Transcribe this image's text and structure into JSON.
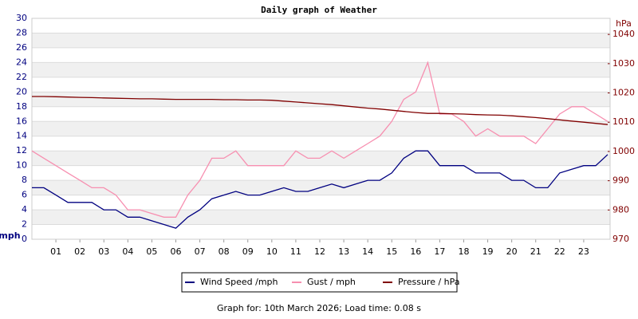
{
  "chart_data": {
    "type": "line",
    "title": "Daily graph of Weather",
    "y_label": "mph",
    "y2_label": "hPa",
    "caption": "Graph for: 10th March 2026; Load time: 0.08 s",
    "x": [
      0,
      0.5,
      1,
      1.5,
      2,
      2.5,
      3,
      3.5,
      4,
      4.5,
      5,
      5.5,
      6,
      6.5,
      7,
      7.5,
      8,
      8.5,
      9,
      9.5,
      10,
      10.5,
      11,
      11.5,
      12,
      12.5,
      13,
      13.5,
      14,
      14.5,
      15,
      15.5,
      16,
      16.5,
      17,
      17.5,
      18,
      18.5,
      19,
      19.5,
      20,
      20.5,
      21,
      21.5,
      22,
      22.5,
      23,
      23.5,
      24
    ],
    "xlim": [
      0,
      24.1
    ],
    "xticks": [
      {
        "value": 1,
        "label": "01"
      },
      {
        "value": 2,
        "label": "02"
      },
      {
        "value": 3,
        "label": "03"
      },
      {
        "value": 4,
        "label": "04"
      },
      {
        "value": 5,
        "label": "05"
      },
      {
        "value": 6,
        "label": "06"
      },
      {
        "value": 7,
        "label": "07"
      },
      {
        "value": 8,
        "label": "08"
      },
      {
        "value": 9,
        "label": "09"
      },
      {
        "value": 10,
        "label": "10"
      },
      {
        "value": 11,
        "label": "11"
      },
      {
        "value": 12,
        "label": "12"
      },
      {
        "value": 13,
        "label": "13"
      },
      {
        "value": 14,
        "label": "14"
      },
      {
        "value": 15,
        "label": "15"
      },
      {
        "value": 16,
        "label": "16"
      },
      {
        "value": 17,
        "label": "17"
      },
      {
        "value": 18,
        "label": "18"
      },
      {
        "value": 19,
        "label": "19"
      },
      {
        "value": 20,
        "label": "20"
      },
      {
        "value": 21,
        "label": "21"
      },
      {
        "value": 22,
        "label": "22"
      },
      {
        "value": 23,
        "label": "23"
      }
    ],
    "ylim": [
      0,
      30
    ],
    "yticks": [
      0,
      2,
      4,
      6,
      8,
      10,
      12,
      14,
      16,
      18,
      20,
      22,
      24,
      26,
      28,
      30
    ],
    "y2lim": [
      970,
      1045.5
    ],
    "y2ticks": [
      970,
      980,
      990,
      1000,
      1010,
      1020,
      1030,
      1040
    ],
    "grid": true,
    "legend": "bottom",
    "series": [
      {
        "name": "Wind Speed /mph",
        "color": "#000080",
        "values": [
          7,
          7,
          6,
          5,
          5,
          5,
          4,
          4,
          3,
          3,
          2.5,
          2,
          1.5,
          3,
          4,
          5.5,
          6,
          6.5,
          6,
          6,
          6.5,
          7,
          6.5,
          6.5,
          7,
          7.5,
          7,
          7.5,
          8,
          8,
          9,
          11,
          12,
          12,
          10,
          10,
          10,
          9,
          9,
          9,
          8,
          8,
          7,
          7,
          9,
          9.5,
          10,
          10,
          11.5
        ]
      },
      {
        "name": "Gust / mph",
        "color": "#f78fb0",
        "values": [
          12,
          11,
          10,
          9,
          8,
          7,
          7,
          6,
          4,
          4,
          3.5,
          3,
          3,
          6,
          8,
          11,
          11,
          12,
          10,
          10,
          10,
          10,
          12,
          11,
          11,
          12,
          11,
          12,
          13,
          14,
          16,
          19,
          20,
          24,
          17,
          17,
          16,
          14,
          15,
          14,
          14,
          14,
          13,
          15,
          17,
          18,
          18,
          17,
          16
        ]
      },
      {
        "name": "Pressure / hPa",
        "color": "#800000",
        "axis": "y2",
        "values": [
          1018.8,
          1018.8,
          1018.7,
          1018.6,
          1018.5,
          1018.4,
          1018.3,
          1018.2,
          1018.1,
          1018,
          1018,
          1017.9,
          1017.8,
          1017.8,
          1017.8,
          1017.8,
          1017.7,
          1017.7,
          1017.6,
          1017.6,
          1017.5,
          1017.2,
          1016.9,
          1016.6,
          1016.3,
          1016,
          1015.6,
          1015.2,
          1014.8,
          1014.5,
          1014.1,
          1013.7,
          1013.3,
          1013,
          1013,
          1012.9,
          1012.8,
          1012.6,
          1012.5,
          1012.4,
          1012.2,
          1011.9,
          1011.6,
          1011.2,
          1010.8,
          1010.4,
          1010,
          1009.6,
          1009.2
        ]
      }
    ]
  }
}
